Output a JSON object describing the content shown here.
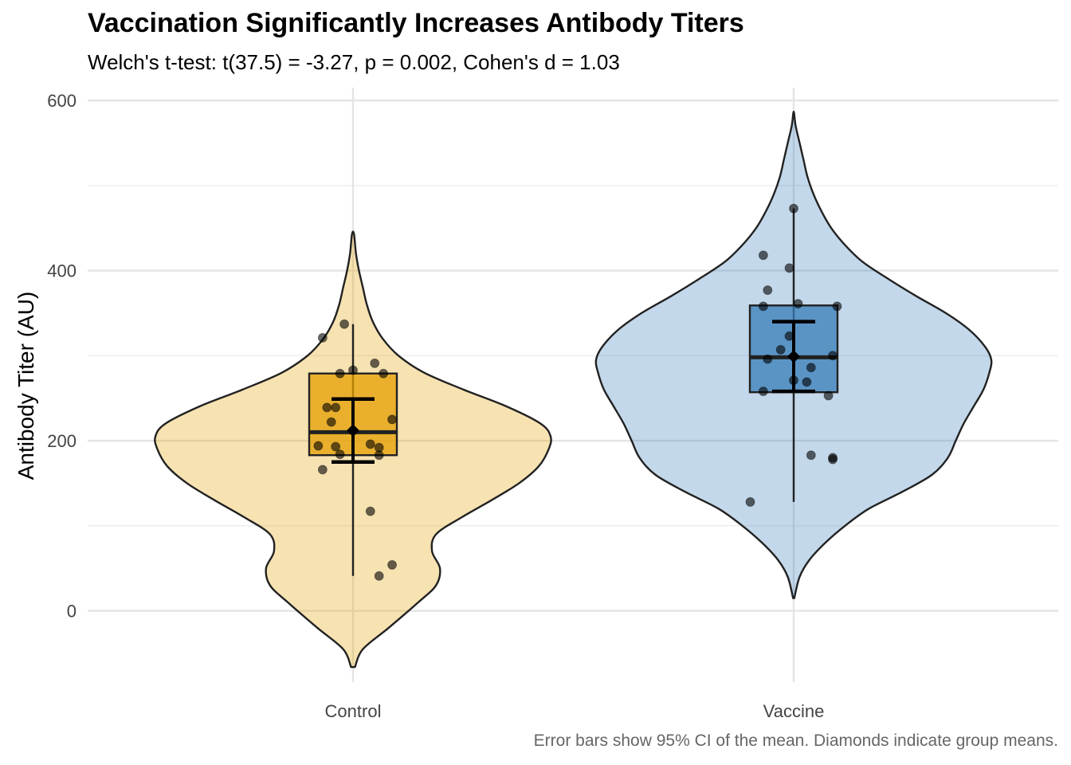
{
  "chart_data": {
    "type": "violin",
    "title": "Vaccination Significantly Increases Antibody Titers",
    "subtitle": "Welch's t-test: t(37.5) = -3.27, p = 0.002, Cohen's d = 1.03",
    "caption": "Error bars show 95% CI of the mean. Diamonds indicate group means.",
    "xlabel": "",
    "ylabel": "Antibody Titer (AU)",
    "ylim": [
      -95,
      615
    ],
    "yticks": [
      0,
      200,
      400,
      600
    ],
    "categories": [
      "Control",
      "Vaccine"
    ],
    "groups": [
      {
        "name": "Control",
        "color": "#E69F00",
        "violin_profile": [
          [
            -66,
            0.01
          ],
          [
            -45,
            0.05
          ],
          [
            -20,
            0.18
          ],
          [
            10,
            0.33
          ],
          [
            30,
            0.42
          ],
          [
            50,
            0.44
          ],
          [
            70,
            0.4
          ],
          [
            90,
            0.42
          ],
          [
            110,
            0.55
          ],
          [
            130,
            0.7
          ],
          [
            150,
            0.84
          ],
          [
            170,
            0.94
          ],
          [
            190,
            0.99
          ],
          [
            205,
            1.0
          ],
          [
            220,
            0.95
          ],
          [
            240,
            0.78
          ],
          [
            260,
            0.56
          ],
          [
            280,
            0.36
          ],
          [
            300,
            0.23
          ],
          [
            320,
            0.15
          ],
          [
            340,
            0.1
          ],
          [
            360,
            0.07
          ],
          [
            380,
            0.05
          ],
          [
            400,
            0.03
          ],
          [
            420,
            0.015
          ],
          [
            443,
            0.005
          ]
        ],
        "box": {
          "q1": 183,
          "median": 210,
          "q3": 279,
          "whisker_low": 41,
          "whisker_high": 337
        },
        "mean": 212,
        "ci": [
          175,
          249
        ],
        "points": [
          [
            -0.07,
            321
          ],
          [
            -0.02,
            337
          ],
          [
            -0.03,
            279
          ],
          [
            0.0,
            283
          ],
          [
            0.05,
            291
          ],
          [
            0.07,
            279
          ],
          [
            -0.06,
            239
          ],
          [
            -0.04,
            239
          ],
          [
            -0.05,
            222
          ],
          [
            0.09,
            225
          ],
          [
            -0.08,
            194
          ],
          [
            -0.04,
            193
          ],
          [
            -0.03,
            184
          ],
          [
            0.04,
            196
          ],
          [
            0.06,
            192
          ],
          [
            0.06,
            183
          ],
          [
            -0.07,
            166
          ],
          [
            0.04,
            117
          ],
          [
            0.06,
            41
          ],
          [
            0.09,
            54
          ]
        ]
      },
      {
        "name": "Vaccine",
        "color": "#377EB8",
        "violin_profile": [
          [
            15,
            0.003
          ],
          [
            40,
            0.03
          ],
          [
            60,
            0.08
          ],
          [
            80,
            0.16
          ],
          [
            100,
            0.26
          ],
          [
            120,
            0.38
          ],
          [
            140,
            0.55
          ],
          [
            160,
            0.7
          ],
          [
            180,
            0.78
          ],
          [
            200,
            0.82
          ],
          [
            220,
            0.86
          ],
          [
            240,
            0.91
          ],
          [
            260,
            0.96
          ],
          [
            280,
            0.99
          ],
          [
            295,
            1.0
          ],
          [
            310,
            0.97
          ],
          [
            330,
            0.89
          ],
          [
            350,
            0.77
          ],
          [
            370,
            0.62
          ],
          [
            390,
            0.48
          ],
          [
            410,
            0.35
          ],
          [
            430,
            0.26
          ],
          [
            450,
            0.19
          ],
          [
            470,
            0.14
          ],
          [
            490,
            0.1
          ],
          [
            510,
            0.07
          ],
          [
            530,
            0.05
          ],
          [
            550,
            0.03
          ],
          [
            570,
            0.01
          ],
          [
            585,
            0.002
          ]
        ],
        "box": {
          "q1": 257,
          "median": 298,
          "q3": 359,
          "whisker_low": 128,
          "whisker_high": 473
        },
        "mean": 299,
        "ci": [
          258,
          340
        ],
        "points": [
          [
            0.0,
            473
          ],
          [
            -0.07,
            418
          ],
          [
            -0.01,
            403
          ],
          [
            -0.06,
            377
          ],
          [
            -0.07,
            358
          ],
          [
            0.01,
            361
          ],
          [
            0.1,
            358
          ],
          [
            -0.01,
            323
          ],
          [
            -0.03,
            307
          ],
          [
            -0.06,
            296
          ],
          [
            0.09,
            300
          ],
          [
            0.04,
            286
          ],
          [
            -0.0,
            271
          ],
          [
            0.03,
            269
          ],
          [
            -0.07,
            258
          ],
          [
            0.08,
            253
          ],
          [
            0.04,
            183
          ],
          [
            0.09,
            180
          ],
          [
            0.09,
            178
          ],
          [
            -0.1,
            128
          ]
        ]
      }
    ],
    "grid": true,
    "legend": "none"
  }
}
